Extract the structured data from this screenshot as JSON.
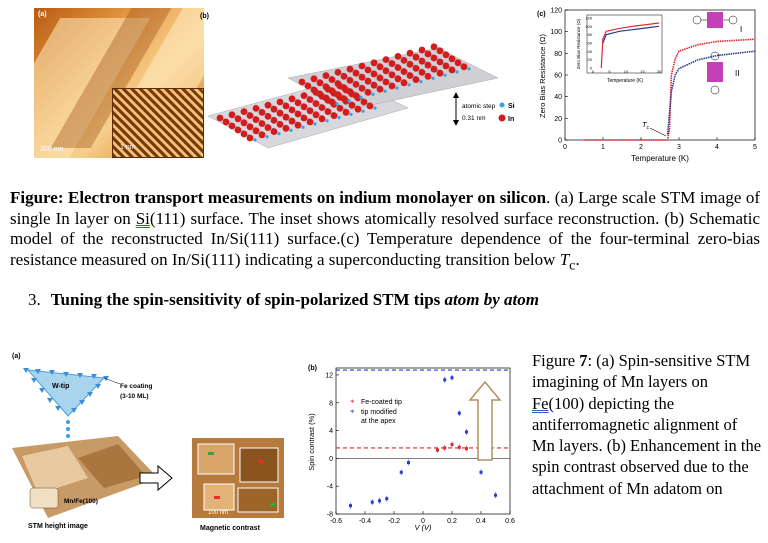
{
  "top_figure": {
    "panel_a": {
      "label": "(a)",
      "scale_main": "200 nm",
      "scale_inset": "1 nm"
    },
    "panel_b": {
      "label": "(b)",
      "step_label_1": "atomic step",
      "step_label_2": "0.31 nm",
      "legend_si": "Si",
      "legend_in": "In"
    },
    "panel_c": {
      "label": "(c)",
      "ylabel": "Zero Bias Resistance (Ω)",
      "xlabel": "Temperature (K)",
      "y_ticks": [
        "0",
        "20",
        "40",
        "60",
        "80",
        "100",
        "120"
      ],
      "x_ticks": [
        "0",
        "1",
        "2",
        "3",
        "4",
        "5"
      ],
      "tc_label": "T",
      "tc_sub": "c",
      "label_I": "I",
      "label_II": "II",
      "inset": {
        "ylabel": "Zero Bias Resistance (Ω)",
        "xlabel": "Temperature (K)",
        "y_ticks": [
          "0",
          "20",
          "40",
          "60",
          "80",
          "100",
          "120"
        ],
        "x_ticks": [
          "0",
          "5",
          "10",
          "15",
          "20"
        ]
      }
    }
  },
  "caption": {
    "bold_lead": "Figure:  Electron transport measurements on indium monolayer on silicon",
    "part1": ". (a) Large scale STM image of single In layer on ",
    "si_link": "Si",
    "part2": "(111) surface. The inset shows atomically resolved surface reconstruction. (b) Schematic model of the reconstructed In/Si(111) surface.(c) Temperature dependence of the four-terminal zero-bias resistance measured on In/Si(111) indicating a superconducting transition below ",
    "tc_italic": "T",
    "tc_sub": "c",
    "end": "."
  },
  "section": {
    "number": "3.",
    "title_bold": "Tuning the spin-sensitivity of spin-polarized STM tips ",
    "title_italic": "atom by atom"
  },
  "bottom_figure": {
    "panel_a": {
      "label": "(a)",
      "tip_label": "W-tip",
      "coating_1": "Fe coating",
      "coating_2": "(3-10 ML)",
      "sample_label": "Mn/Fe(100)",
      "left_caption": "STM height image",
      "right_caption": "Magnetic contrast",
      "scale": "100 nm"
    },
    "panel_b": {
      "label": "(b)",
      "legend_red": "Fe-coated tip",
      "legend_blue_1": "tip modified",
      "legend_blue_2": "at the apex",
      "ylabel": "Spin contrast (%)",
      "xlabel": "V (V)",
      "y_ticks": [
        "-8",
        "-4",
        "0",
        "4",
        "8",
        "12"
      ],
      "x_ticks": [
        "-0.6",
        "-0.4",
        "-0.2",
        "0",
        "0.2",
        "0.4",
        "0.6"
      ]
    }
  },
  "side_caption": {
    "p1": "Figure ",
    "p1_bold": "7",
    "p2": ": (a) Spin-sensitive STM imagining of Mn layers on ",
    "fe_link": "Fe",
    "p3": "(100) depicting the antiferromagnetic alignment of Mn layers. (b) Enhancement in the spin contrast observed due to the attachment of Mn adatom on"
  },
  "chart_data": [
    {
      "type": "line",
      "title": "",
      "xlabel": "Temperature (K)",
      "ylabel": "Zero Bias Resistance (Ω)",
      "xlim": [
        0,
        5
      ],
      "ylim": [
        0,
        120
      ],
      "series": [
        {
          "name": "I",
          "color": "#e0262e",
          "x": [
            0.5,
            1.0,
            1.5,
            2.0,
            2.5,
            2.7,
            2.75,
            2.8,
            2.9,
            3.0,
            3.5,
            4.0,
            4.5,
            5.0
          ],
          "y": [
            0,
            0,
            0,
            0,
            0,
            0,
            10,
            60,
            75,
            82,
            88,
            91,
            92,
            93
          ]
        },
        {
          "name": "II",
          "color": "#2a3a8c",
          "x": [
            2.7,
            2.8,
            2.9,
            3.0,
            3.5,
            4.0,
            4.5,
            5.0
          ],
          "y": [
            5,
            45,
            60,
            66,
            74,
            78,
            80,
            82
          ]
        }
      ]
    },
    {
      "type": "scatter",
      "title": "",
      "xlabel": "V (V)",
      "ylabel": "Spin contrast (%)",
      "xlim": [
        -0.6,
        0.6
      ],
      "ylim": [
        -8,
        13
      ],
      "series": [
        {
          "name": "Fe-coated tip",
          "color": "#e0262e",
          "x": [
            0.1,
            0.15,
            0.2,
            0.25,
            0.3,
            0.4
          ],
          "y": [
            1.2,
            1.5,
            2.0,
            1.6,
            1.4,
            1.5
          ],
          "reference_line": 1.5
        },
        {
          "name": "tip modified at the apex",
          "color": "#2a3acc",
          "x": [
            -0.5,
            -0.35,
            -0.3,
            -0.25,
            -0.15,
            -0.1,
            0.15,
            0.2,
            0.25,
            0.3,
            0.4,
            0.5
          ],
          "y": [
            -6.8,
            -6.3,
            -6.1,
            -5.8,
            -2.0,
            -0.6,
            11.3,
            11.6,
            6.5,
            3.8,
            -2.0,
            -5.3
          ],
          "reference_line": 12.7
        }
      ]
    }
  ]
}
